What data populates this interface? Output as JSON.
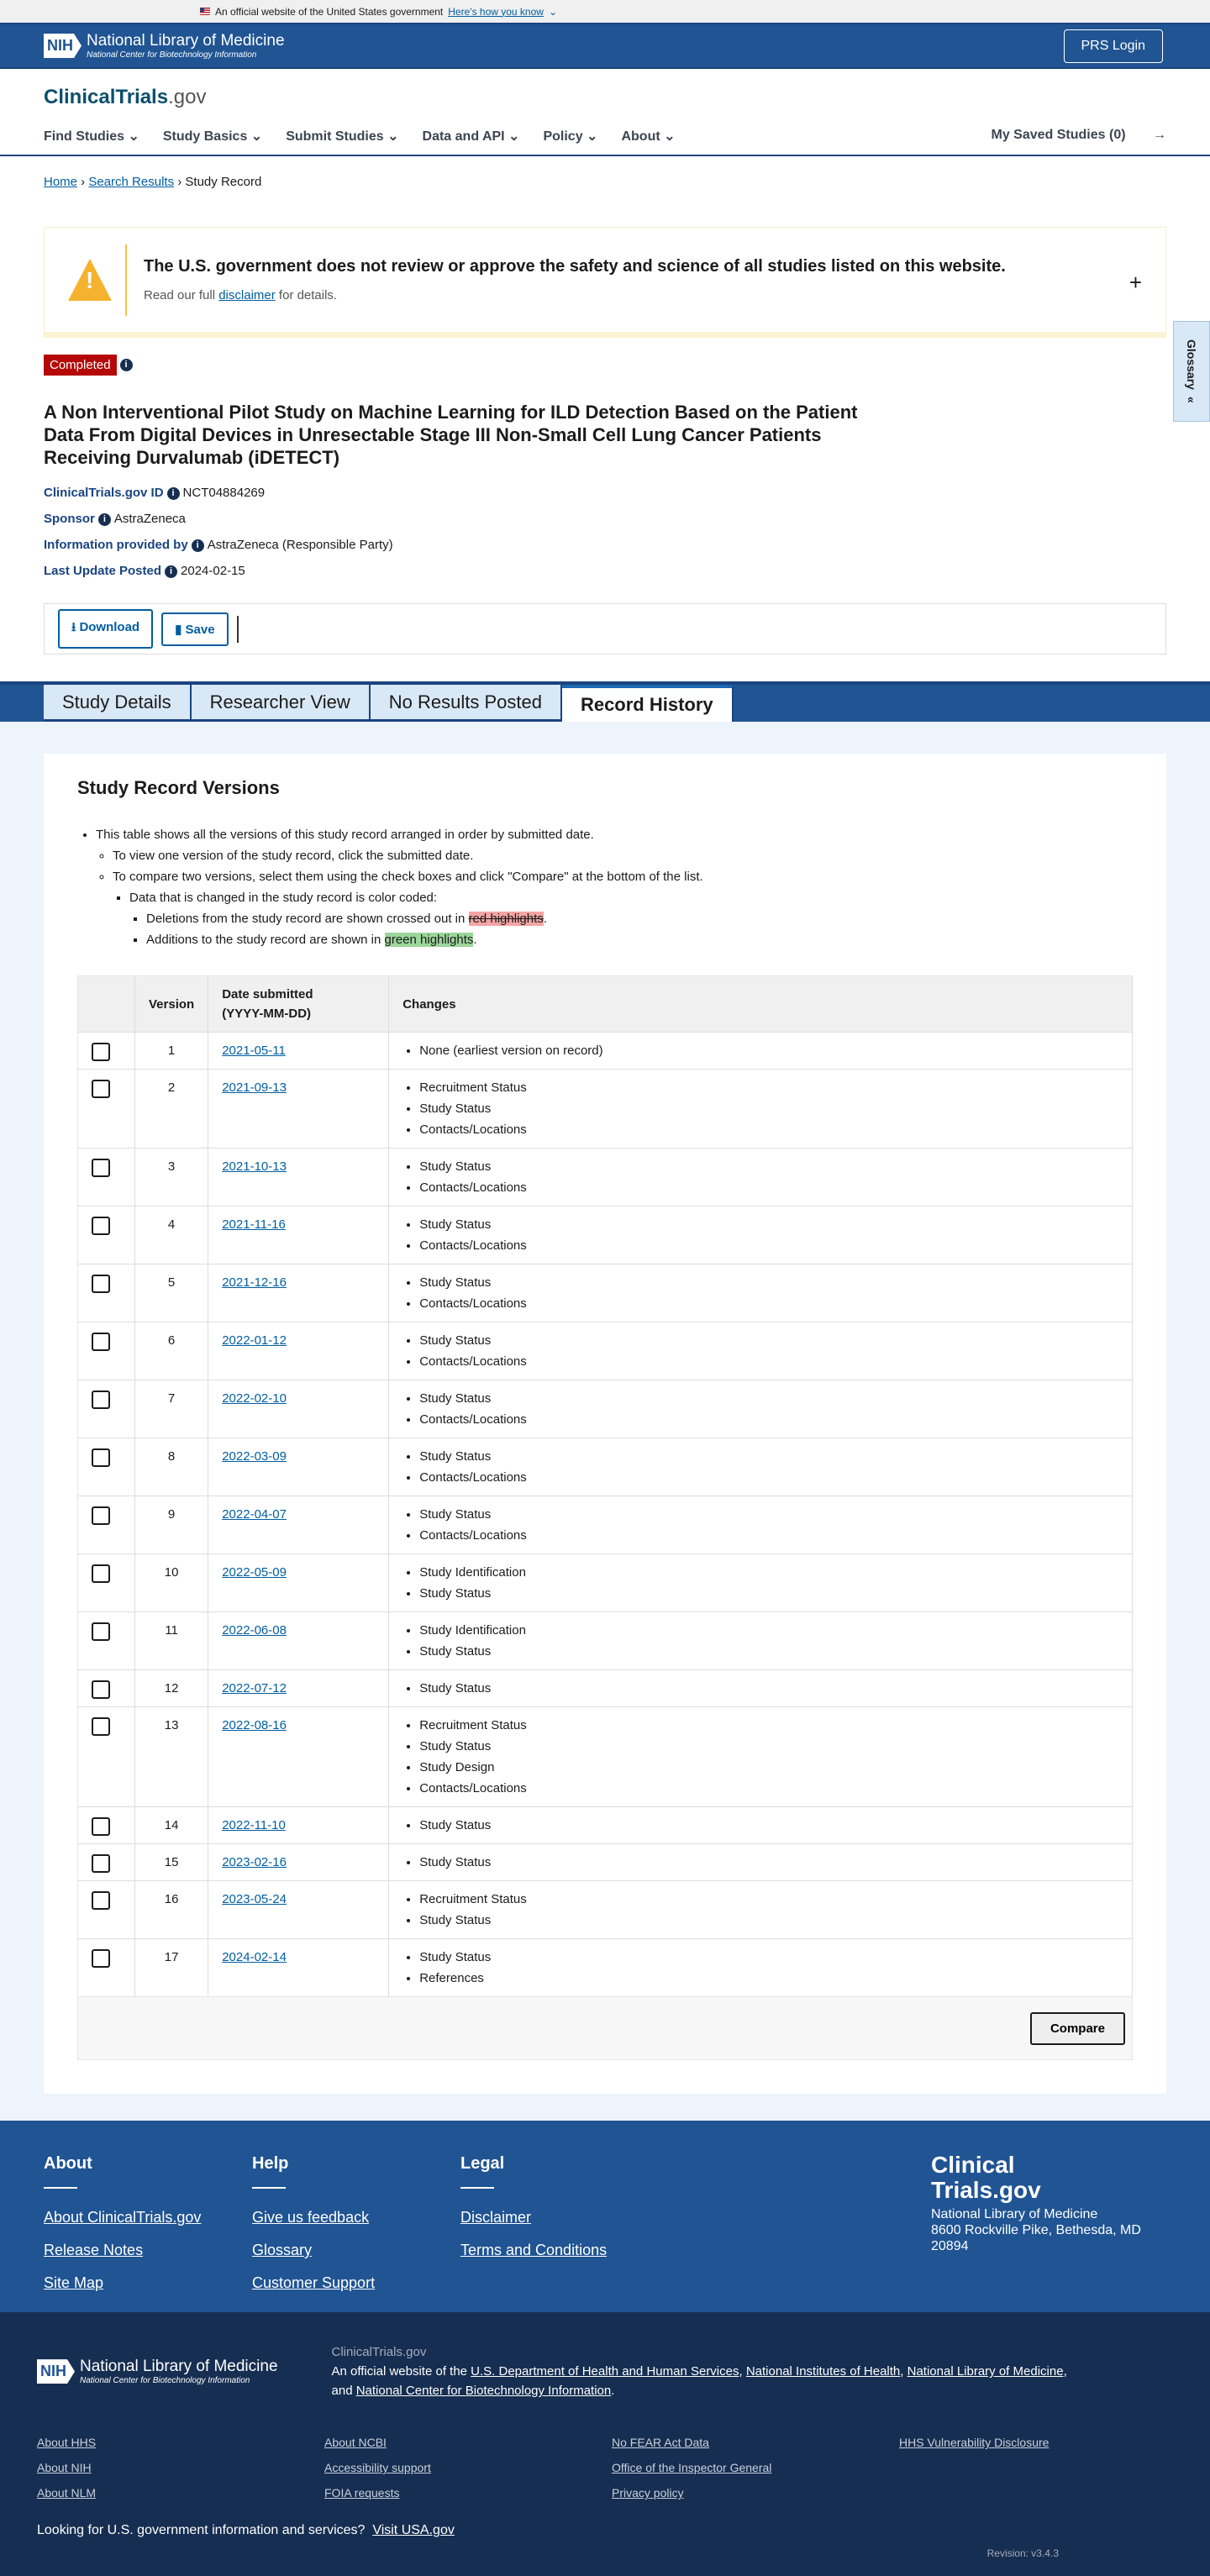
{
  "gov_banner": {
    "text": "An official website of the United States government",
    "link": "Here's how you know"
  },
  "header": {
    "nih_mark": "NIH",
    "org": "National Library of Medicine",
    "sub": "National Center for Biotechnology Information",
    "login": "PRS Login"
  },
  "brand": {
    "name": "ClinicalTrials",
    "tld": ".gov"
  },
  "nav": {
    "items": [
      "Find Studies",
      "Study Basics",
      "Submit Studies",
      "Data and API",
      "Policy",
      "About"
    ],
    "saved": "My Saved Studies (0)"
  },
  "breadcrumb": {
    "home": "Home",
    "results": "Search Results",
    "current": "Study Record"
  },
  "glossary": "Glossary",
  "disclaimer": {
    "title": "The U.S. government does not review or approve the safety and science of all studies listed on this website.",
    "pre": "Read our full ",
    "link": "disclaimer",
    "post": " for details."
  },
  "study": {
    "status": "Completed",
    "title": "A Non Interventional Pilot Study on Machine Learning for ILD Detection Based on the Patient Data From Digital Devices in Unresectable Stage III Non-Small Cell Lung Cancer Patients Receiving Durvalumab (iDETECT)",
    "meta": [
      {
        "label": "ClinicalTrials.gov ID",
        "value": "NCT04884269"
      },
      {
        "label": "Sponsor",
        "value": "AstraZeneca"
      },
      {
        "label": "Information provided by",
        "value": "AstraZeneca (Responsible Party)"
      },
      {
        "label": "Last Update Posted",
        "value": "2024-02-15"
      }
    ]
  },
  "actions": {
    "download": "Download",
    "save": "Save"
  },
  "tabs": [
    "Study Details",
    "Researcher View",
    "No Results Posted",
    "Record History"
  ],
  "versions": {
    "title": "Study Record Versions",
    "note1": "This table shows all the versions of this study record arranged in order by submitted date.",
    "note2": "To view one version of the study record, click the submitted date.",
    "note3": "To compare two versions, select them using the check boxes and click \"Compare\" at the bottom of the list.",
    "note4": "Data that is changed in the study record is color coded:",
    "note5_pre": "Deletions from the study record are shown crossed out in ",
    "note5_hl": "red highlights",
    "note6_pre": "Additions to the study record are shown in ",
    "note6_hl": "green highlights",
    "headers": {
      "version": "Version",
      "date1": "Date submitted",
      "date2": "(YYYY-MM-DD)",
      "changes": "Changes"
    },
    "rows": [
      {
        "v": "1",
        "d": "2021-05-11",
        "c": [
          "None (earliest version on record)"
        ]
      },
      {
        "v": "2",
        "d": "2021-09-13",
        "c": [
          "Recruitment Status",
          "Study Status",
          "Contacts/Locations"
        ]
      },
      {
        "v": "3",
        "d": "2021-10-13",
        "c": [
          "Study Status",
          "Contacts/Locations"
        ]
      },
      {
        "v": "4",
        "d": "2021-11-16",
        "c": [
          "Study Status",
          "Contacts/Locations"
        ]
      },
      {
        "v": "5",
        "d": "2021-12-16",
        "c": [
          "Study Status",
          "Contacts/Locations"
        ]
      },
      {
        "v": "6",
        "d": "2022-01-12",
        "c": [
          "Study Status",
          "Contacts/Locations"
        ]
      },
      {
        "v": "7",
        "d": "2022-02-10",
        "c": [
          "Study Status",
          "Contacts/Locations"
        ]
      },
      {
        "v": "8",
        "d": "2022-03-09",
        "c": [
          "Study Status",
          "Contacts/Locations"
        ]
      },
      {
        "v": "9",
        "d": "2022-04-07",
        "c": [
          "Study Status",
          "Contacts/Locations"
        ]
      },
      {
        "v": "10",
        "d": "2022-05-09",
        "c": [
          "Study Identification",
          "Study Status"
        ]
      },
      {
        "v": "11",
        "d": "2022-06-08",
        "c": [
          "Study Identification",
          "Study Status"
        ]
      },
      {
        "v": "12",
        "d": "2022-07-12",
        "c": [
          "Study Status"
        ]
      },
      {
        "v": "13",
        "d": "2022-08-16",
        "c": [
          "Recruitment Status",
          "Study Status",
          "Study Design",
          "Contacts/Locations"
        ]
      },
      {
        "v": "14",
        "d": "2022-11-10",
        "c": [
          "Study Status"
        ]
      },
      {
        "v": "15",
        "d": "2023-02-16",
        "c": [
          "Study Status"
        ]
      },
      {
        "v": "16",
        "d": "2023-05-24",
        "c": [
          "Recruitment Status",
          "Study Status"
        ]
      },
      {
        "v": "17",
        "d": "2024-02-14",
        "c": [
          "Study Status",
          "References"
        ]
      }
    ],
    "compare": "Compare"
  },
  "footer": {
    "cols": [
      {
        "h": "About",
        "links": [
          "About ClinicalTrials.gov",
          "Release Notes",
          "Site Map"
        ]
      },
      {
        "h": "Help",
        "links": [
          "Give us feedback",
          "Glossary",
          "Customer Support"
        ]
      },
      {
        "h": "Legal",
        "links": [
          "Disclaimer",
          "Terms and Conditions"
        ]
      }
    ],
    "brand1": "Clinical",
    "brand2": "Trials.gov",
    "addr1": "National Library of Medicine",
    "addr2": "8600 Rockville Pike, Bethesda, MD",
    "addr3": "20894",
    "site": "ClinicalTrials.gov",
    "official": "An official website of the ",
    "hhs": "U.S. Department of Health and Human Services",
    "nih": "National Institutes of Health",
    "nlm": "National Library of Medicine",
    "and": "and ",
    "ncbi": "National Center for Biotechnology Information",
    "links": [
      "About HHS",
      "About NCBI",
      "No FEAR Act Data",
      "HHS Vulnerability Disclosure",
      "About NIH",
      "Accessibility support",
      "Office of the Inspector General",
      "",
      "About NLM",
      "FOIA requests",
      "Privacy policy",
      ""
    ],
    "looking": "Looking for U.S. government information and services?",
    "usa": "Visit USA.gov",
    "revision": "Revision: v3.4.3"
  }
}
